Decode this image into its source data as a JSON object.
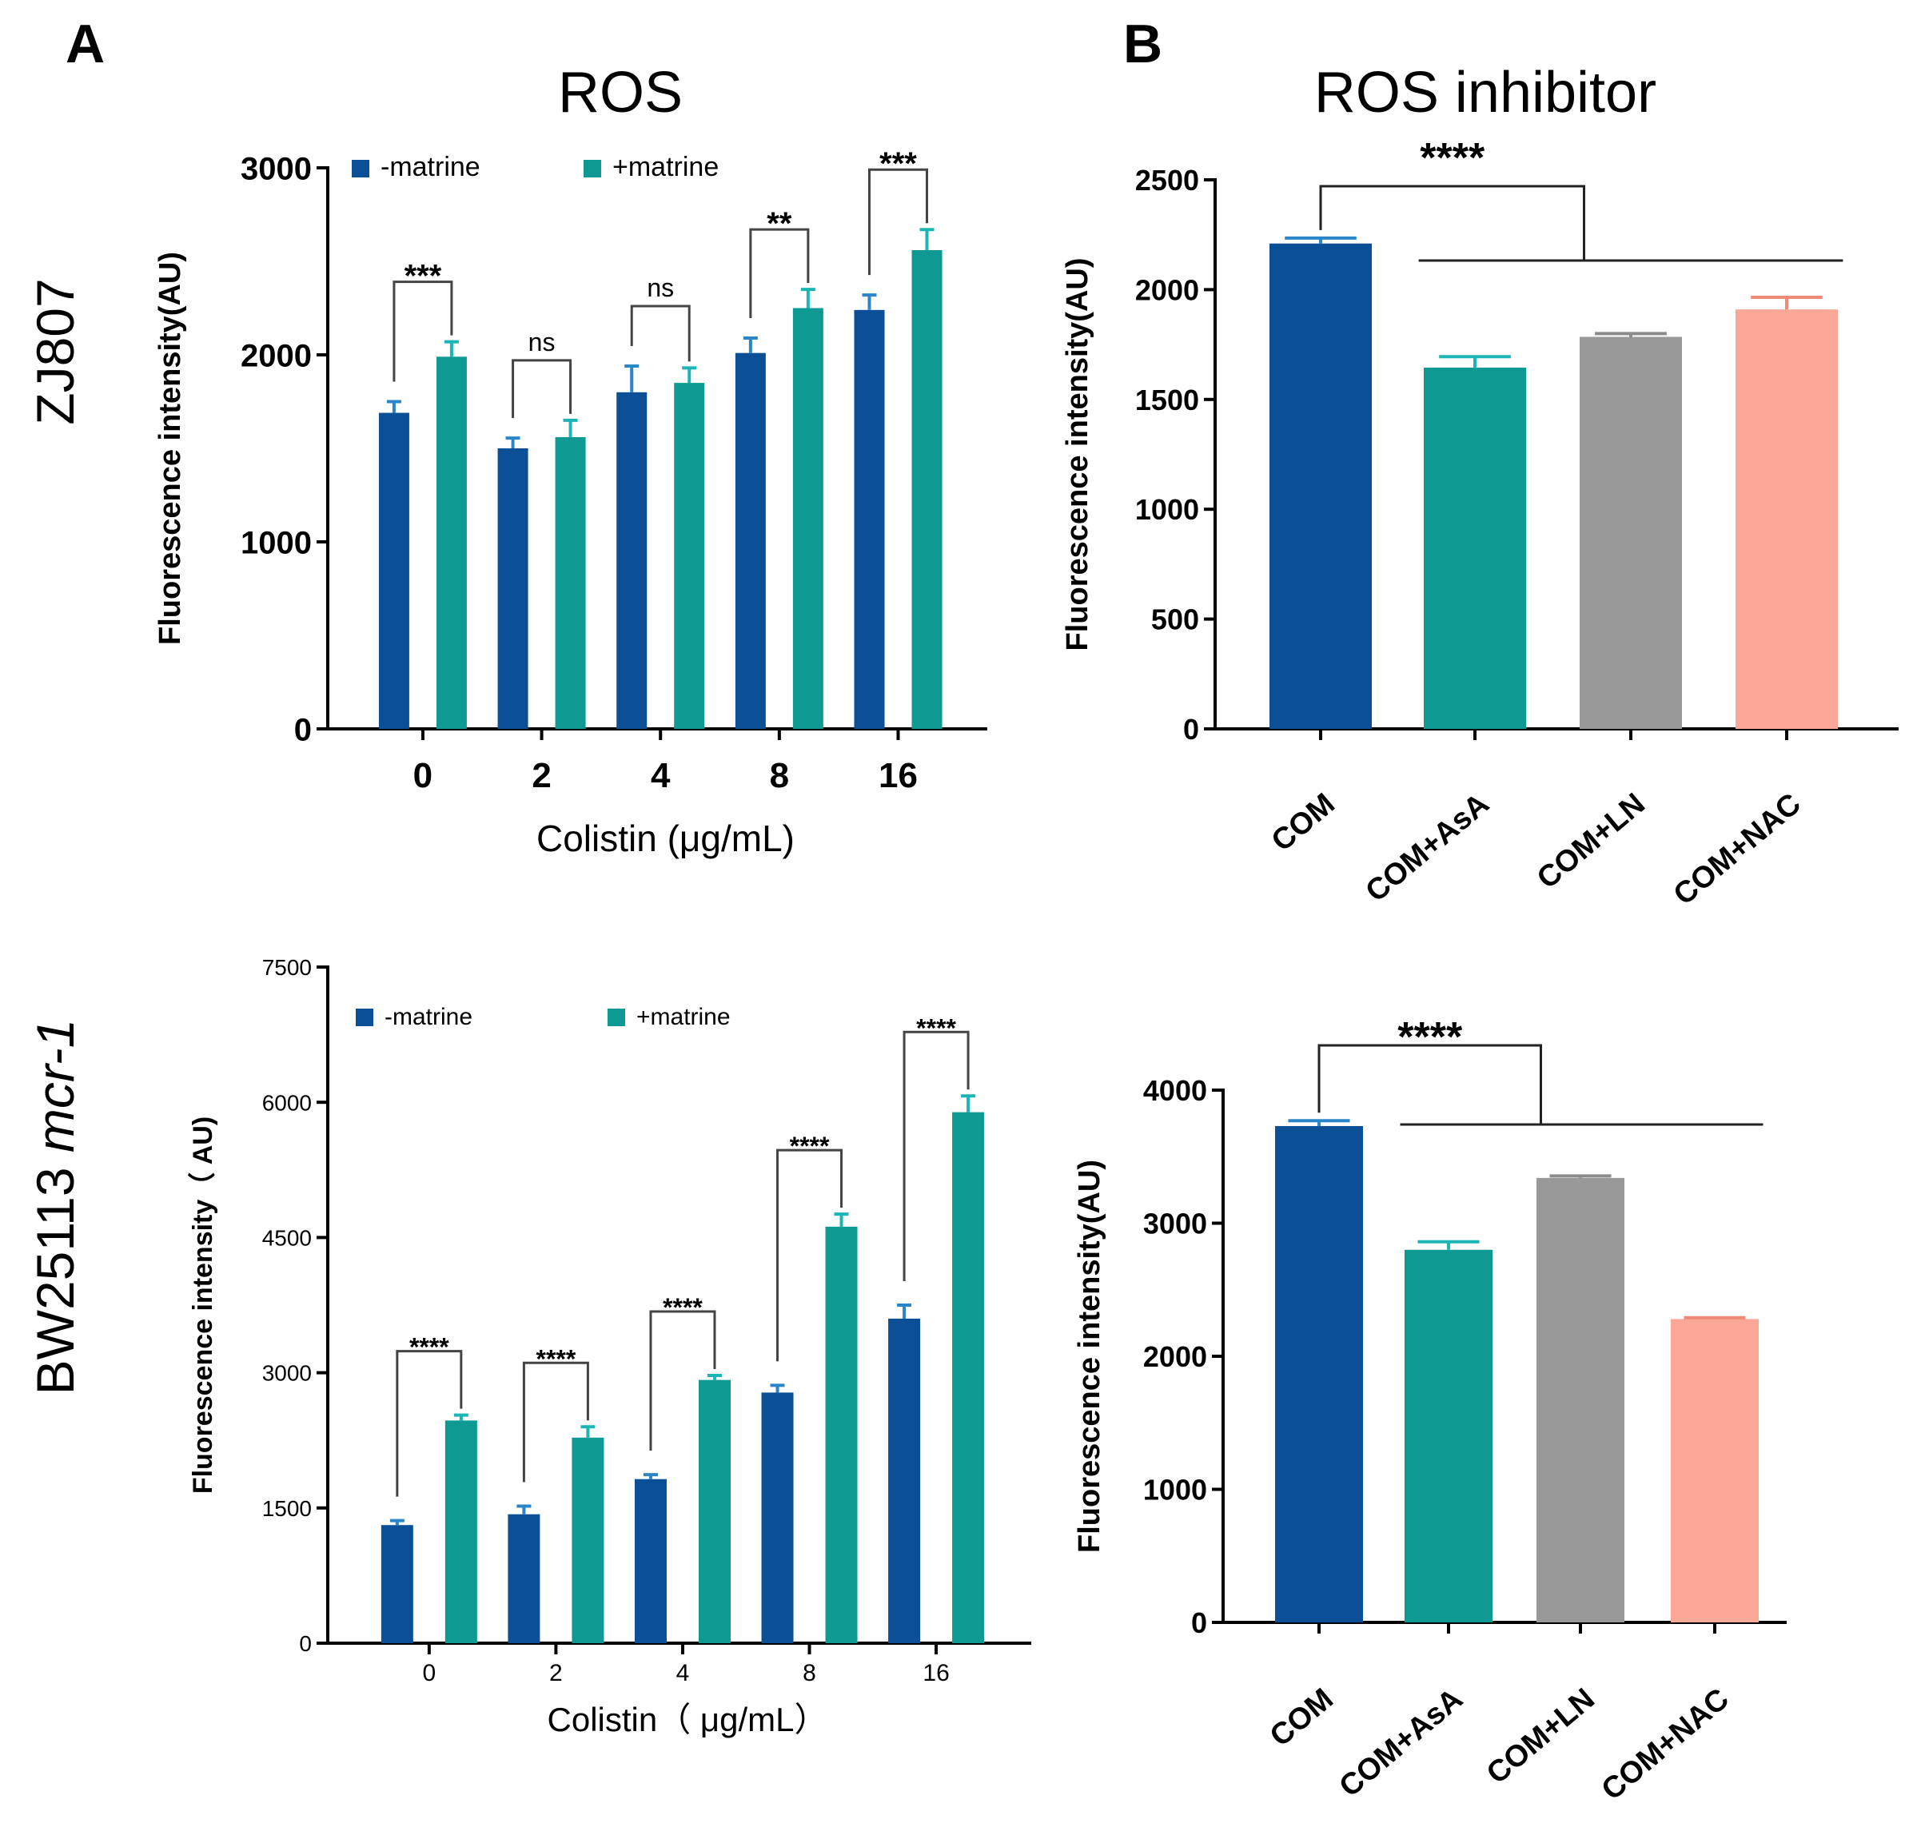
{
  "figure": {
    "panel_a_letter": "A",
    "panel_b_letter": "B",
    "panel_a_title": "ROS",
    "panel_b_title": "ROS inhibitor",
    "row1_label": "ZJ807",
    "row2_label_main": "BW25113 ",
    "row2_label_italic": "mcr-1"
  },
  "colors": {
    "minus_matrine": "#0b4f96",
    "plus_matrine": "#0e9a92",
    "COM": "#0b4f96",
    "COM+AsA": "#0e9a92",
    "COM+LN": "#999999",
    "COM+NAC": "#f9a797",
    "err_blue": "#2a86c8",
    "err_teal": "#1bb5b5",
    "err_gray": "#8a8a8a",
    "err_salmon": "#f08a78"
  },
  "chart_data": [
    {
      "id": "A1",
      "type": "bar",
      "title": "ROS",
      "xlabel": "Colistin (μg/mL)",
      "ylabel": "Fluorescence intensity(AU)",
      "categories": [
        "0",
        "2",
        "4",
        "8",
        "16"
      ],
      "ylim": [
        0,
        3000
      ],
      "yticks": [
        0,
        1000,
        2000,
        3000
      ],
      "ytick_labels": [
        "0",
        "1000",
        "2000",
        "3000"
      ],
      "series": [
        {
          "name": "-matrine",
          "values": [
            1690,
            1500,
            1800,
            2010,
            2240
          ],
          "errors": [
            60,
            55,
            140,
            80,
            80
          ]
        },
        {
          "name": "+matrine",
          "values": [
            1990,
            1560,
            1850,
            2250,
            2560
          ],
          "errors": [
            80,
            90,
            80,
            100,
            110
          ]
        }
      ],
      "significance": [
        "***",
        "ns",
        "ns",
        "**",
        "***"
      ],
      "legend": "top"
    },
    {
      "id": "B1",
      "type": "bar",
      "title": "ROS inhibitor",
      "xlabel": "",
      "ylabel": "Fluorescence intensity(AU)",
      "categories": [
        "COM",
        "COM+AsA",
        "COM+LN",
        "COM+NAC"
      ],
      "ylim": [
        0,
        2500
      ],
      "yticks": [
        0,
        500,
        1000,
        1500,
        2000,
        2500
      ],
      "ytick_labels": [
        "0",
        "500",
        "1000",
        "1500",
        "2000",
        "2500"
      ],
      "values": [
        2210,
        1645,
        1785,
        1910
      ],
      "errors": [
        25,
        50,
        15,
        55
      ],
      "significance": "****"
    },
    {
      "id": "A2",
      "type": "bar",
      "xlabel": "Colistin（ μg/mL）",
      "ylabel": "Fluorescence intensity（ AU)",
      "categories": [
        "0",
        "2",
        "4",
        "8",
        "16"
      ],
      "ylim": [
        0,
        7500
      ],
      "yticks": [
        0,
        1500,
        3000,
        4500,
        6000,
        7500
      ],
      "ytick_labels": [
        "0",
        "1500",
        "3000",
        "4500",
        "6000",
        "7500"
      ],
      "series": [
        {
          "name": "-matrine",
          "values": [
            1310,
            1430,
            1820,
            2780,
            3600
          ],
          "errors": [
            50,
            90,
            50,
            80,
            150
          ]
        },
        {
          "name": "+matrine",
          "values": [
            2470,
            2280,
            2920,
            4620,
            5890
          ],
          "errors": [
            60,
            120,
            50,
            140,
            180
          ]
        }
      ],
      "significance": [
        "****",
        "****",
        "****",
        "****",
        "****"
      ],
      "legend": "top"
    },
    {
      "id": "B2",
      "type": "bar",
      "xlabel": "",
      "ylabel": "Fluorescence intensity(AU)",
      "categories": [
        "COM",
        "COM+AsA",
        "COM+LN",
        "COM+NAC"
      ],
      "ylim": [
        0,
        4000
      ],
      "yticks": [
        0,
        1000,
        2000,
        3000,
        4000
      ],
      "ytick_labels": [
        "0",
        "1000",
        "2000",
        "3000",
        "4000"
      ],
      "values": [
        3730,
        2800,
        3340,
        2280
      ],
      "errors": [
        40,
        60,
        15,
        10
      ],
      "significance": "****"
    }
  ]
}
